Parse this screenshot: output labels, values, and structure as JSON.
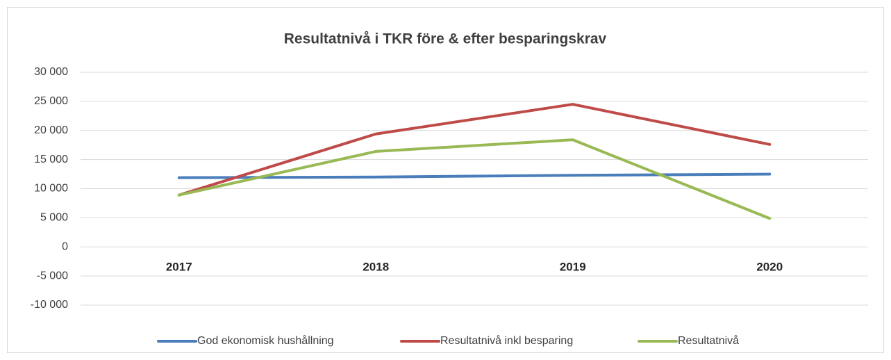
{
  "chart_data": {
    "type": "line",
    "title": "Resultatnivå i TKR före & efter besparingskrav",
    "categories": [
      "2017",
      "2018",
      "2019",
      "2020"
    ],
    "series": [
      {
        "name": "God ekonomisk hushållning",
        "color": "#4a7ebb",
        "values": [
          11900,
          12000,
          12300,
          12500
        ]
      },
      {
        "name": "Resultatnivå inkl besparing",
        "color": "#be4b48",
        "values": [
          8900,
          19400,
          24500,
          17600
        ]
      },
      {
        "name": "Resultatnivå",
        "color": "#98b954",
        "values": [
          8900,
          16400,
          18400,
          4900
        ]
      }
    ],
    "ylim": [
      -10000,
      30000
    ],
    "yticks": [
      {
        "value": -10000,
        "label": "-10 000"
      },
      {
        "value": -5000,
        "label": "-5 000"
      },
      {
        "value": 0,
        "label": "0"
      },
      {
        "value": 5000,
        "label": "5 000"
      },
      {
        "value": 10000,
        "label": "10 000"
      },
      {
        "value": 15000,
        "label": "15 000"
      },
      {
        "value": 20000,
        "label": "20 000"
      },
      {
        "value": 25000,
        "label": "25 000"
      },
      {
        "value": 30000,
        "label": "30 000"
      }
    ],
    "grid": true,
    "legend": "bottom"
  }
}
